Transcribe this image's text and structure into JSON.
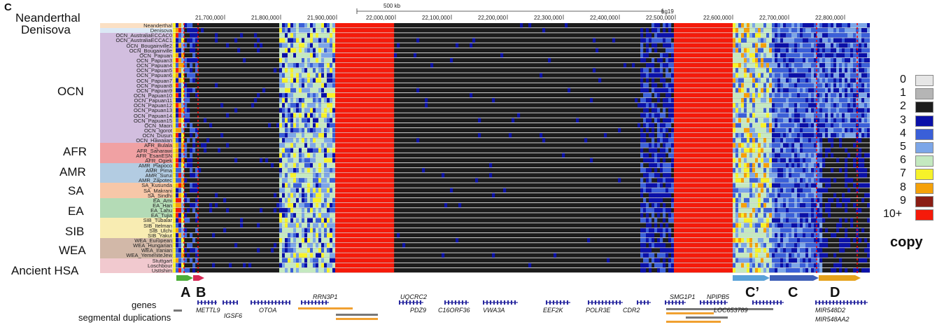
{
  "panel_letter": "C",
  "scale": {
    "bar_label": "500 kb",
    "assembly": "hg19"
  },
  "ticks": [
    "21,700,000",
    "21,800,000",
    "21,900,000",
    "22,000,000",
    "22,100,000",
    "22,200,000",
    "22,300,000",
    "22,400,000",
    "22,500,000",
    "22,600,000",
    "22,700,000",
    "22,800,000"
  ],
  "groups": [
    {
      "name": "Neanderthal",
      "color": "#fbe0c4"
    },
    {
      "name": "Denisova",
      "color": "#dbe8f5"
    },
    {
      "name": "OCN",
      "color": "#d2bedf"
    },
    {
      "name": "AFR",
      "color": "#f0a1a3"
    },
    {
      "name": "AMR",
      "color": "#b3cce2"
    },
    {
      "name": "SA",
      "color": "#f7c7a8"
    },
    {
      "name": "EA",
      "color": "#b4dbb6"
    },
    {
      "name": "SIB",
      "color": "#f8ecb2"
    },
    {
      "name": "WEA",
      "color": "#d2b8a8"
    },
    {
      "name": "Ancient HSA",
      "color": "#f1c9cf"
    }
  ],
  "samples": [
    {
      "name": "Neanderthal",
      "group": 0
    },
    {
      "name": "Denisova",
      "group": 1
    },
    {
      "name": "OCN_AustraliaECCAC0",
      "group": 2
    },
    {
      "name": "OCN_AustraliaECCAC1",
      "group": 2
    },
    {
      "name": "OCN_Bougainville2",
      "group": 2
    },
    {
      "name": "OCN_Bougainville",
      "group": 2
    },
    {
      "name": "OCN_Papuan",
      "group": 2
    },
    {
      "name": "OCN_Papuan3",
      "group": 2
    },
    {
      "name": "OCN_Papuan4",
      "group": 2
    },
    {
      "name": "OCN_Papuan5",
      "group": 2
    },
    {
      "name": "OCN_Papuan6",
      "group": 2
    },
    {
      "name": "OCN_Papuan7",
      "group": 2
    },
    {
      "name": "OCN_Papuan8",
      "group": 2
    },
    {
      "name": "OCN_Papuan9",
      "group": 2
    },
    {
      "name": "OCN_Papuan10",
      "group": 2
    },
    {
      "name": "OCN_Papuan11",
      "group": 2
    },
    {
      "name": "OCN_Papuan12",
      "group": 2
    },
    {
      "name": "OCN_Papuan13",
      "group": 2
    },
    {
      "name": "OCN_Papuan14",
      "group": 2
    },
    {
      "name": "OCN_Papuan15",
      "group": 2
    },
    {
      "name": "OCN_Maori",
      "group": 2
    },
    {
      "name": "OCN_Igorot",
      "group": 2
    },
    {
      "name": "OCN_Dusun",
      "group": 2
    },
    {
      "name": "OCN_Hawaiian",
      "group": 2
    },
    {
      "name": "AFR_Bulala",
      "group": 3
    },
    {
      "name": "AFR_Saharawi",
      "group": 3
    },
    {
      "name": "AFR_EsanESN",
      "group": 3
    },
    {
      "name": "AFR_Ogiek",
      "group": 3
    },
    {
      "name": "AMR_Piapoco",
      "group": 4
    },
    {
      "name": "AMR_Pima",
      "group": 4
    },
    {
      "name": "AMR_Surui",
      "group": 4
    },
    {
      "name": "AMR_Zapotec",
      "group": 4
    },
    {
      "name": "SA_Kusunda",
      "group": 5
    },
    {
      "name": "SA_Makrani",
      "group": 5
    },
    {
      "name": "SA_Sindhi",
      "group": 5
    },
    {
      "name": "EA_Ami",
      "group": 6
    },
    {
      "name": "EA_Han",
      "group": 6
    },
    {
      "name": "EA_Lahu",
      "group": 6
    },
    {
      "name": "EA_Tujia",
      "group": 6
    },
    {
      "name": "SIB_Tubalar",
      "group": 7
    },
    {
      "name": "SIB_Itelman",
      "group": 7
    },
    {
      "name": "SIB_Ulchi",
      "group": 7
    },
    {
      "name": "SIB_Yakut",
      "group": 7
    },
    {
      "name": "WEA_European",
      "group": 8
    },
    {
      "name": "WEA_Hungarian",
      "group": 8
    },
    {
      "name": "WEA_Iranian",
      "group": 8
    },
    {
      "name": "WEA_YemeniteJew",
      "group": 8
    },
    {
      "name": "Stuttgart",
      "group": 9
    },
    {
      "name": "Loschbour",
      "group": 9
    },
    {
      "name": "UstIshim",
      "group": 9
    }
  ],
  "legend": {
    "title": "copy",
    "entries": [
      {
        "label": "0",
        "color": "#e6e6e6"
      },
      {
        "label": "1",
        "color": "#b5b5b5"
      },
      {
        "label": "2",
        "color": "#1c1c1c"
      },
      {
        "label": "3",
        "color": "#0a10a8"
      },
      {
        "label": "4",
        "color": "#3a5fd8"
      },
      {
        "label": "5",
        "color": "#7ca6e8"
      },
      {
        "label": "6",
        "color": "#c4e9c0"
      },
      {
        "label": "7",
        "color": "#f6f22a"
      },
      {
        "label": "8",
        "color": "#f5a10a"
      },
      {
        "label": "9",
        "color": "#8a1d14"
      },
      {
        "label": "10+",
        "color": "#f51a0a"
      }
    ]
  },
  "regions": [
    {
      "label": "A",
      "color": "#4cae3a"
    },
    {
      "label": "B",
      "color": "#d62855"
    },
    {
      "label": "C’",
      "color": "#5aa2d8"
    },
    {
      "label": "C",
      "color": "#3f5fb8"
    },
    {
      "label": "D",
      "color": "#e6a21c"
    }
  ],
  "tracks": {
    "genes": "genes",
    "segdups": "segmental duplications"
  },
  "genes": [
    "METTL9",
    "IGSF6",
    "OTOA",
    "RRN3P1",
    "UQCRC2",
    "PDZ9",
    "C16ORF36",
    "VWA3A",
    "EEF2K",
    "POLR3E",
    "CDR2",
    "SMG1P1",
    "NPIPB5",
    "LOC653789",
    "MIR548D2",
    "MIR548AA2"
  ]
}
